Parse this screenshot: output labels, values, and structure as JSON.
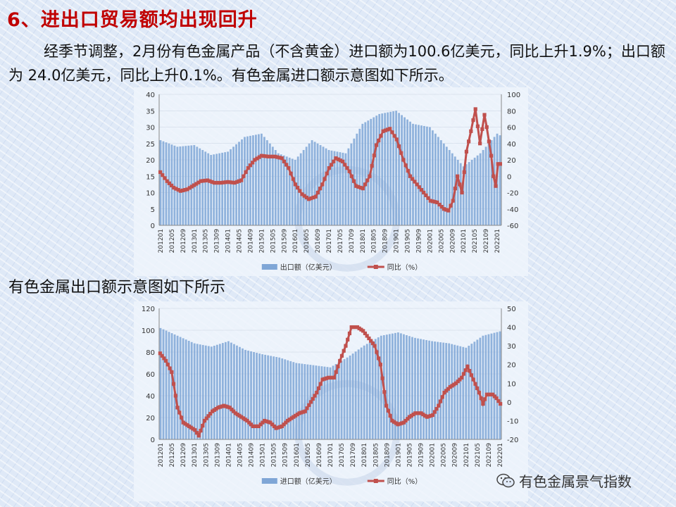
{
  "title": "6、进出口贸易额均出现回升",
  "paragraph": "经季节调整，2月份有色金属产品（不含黄金）进口额为100.6亿美元，同比上升1.9%；出口额为 24.0亿美元，同比上升0.1%。有色金属进口额示意图如下所示。",
  "subtitle": "有色金属出口额示意图如下所示",
  "watermark": "有色金属景气指数",
  "colors": {
    "title": "#c00000",
    "bar": "#7fa6d6",
    "line": "#c0504d"
  },
  "chart_data": [
    {
      "type": "bar+line",
      "title": "",
      "x_ticks": [
        "201201",
        "201205",
        "201209",
        "201301",
        "201305",
        "201309",
        "201401",
        "201405",
        "201409",
        "201501",
        "201505",
        "201509",
        "201601",
        "201605",
        "201609",
        "201701",
        "201705",
        "201709",
        "201801",
        "201805",
        "201809",
        "201901",
        "201905",
        "201909",
        "202001",
        "202005",
        "202009",
        "202101",
        "202105",
        "202109",
        "202201"
      ],
      "y_left": {
        "min": 0,
        "max": 40,
        "step": 5
      },
      "y_right": {
        "min": -60,
        "max": 100,
        "step": 20
      },
      "legend": [
        "出口额（亿美元）",
        "同比（%）"
      ],
      "legend_position": "bottom",
      "bar_anchors": [
        [
          0,
          26
        ],
        [
          6,
          24
        ],
        [
          12,
          24.5
        ],
        [
          18,
          21.5
        ],
        [
          24,
          22.5
        ],
        [
          30,
          27
        ],
        [
          36,
          28
        ],
        [
          42,
          22
        ],
        [
          48,
          20
        ],
        [
          54,
          26
        ],
        [
          60,
          23
        ],
        [
          66,
          22
        ],
        [
          72,
          31
        ],
        [
          78,
          34
        ],
        [
          84,
          35
        ],
        [
          90,
          31
        ],
        [
          96,
          30
        ],
        [
          102,
          24
        ],
        [
          108,
          18
        ],
        [
          114,
          22
        ],
        [
          120,
          28
        ],
        [
          126,
          25
        ],
        [
          128,
          24
        ]
      ],
      "line_anchors": [
        [
          0,
          5
        ],
        [
          3,
          -6
        ],
        [
          6,
          -14
        ],
        [
          9,
          -18
        ],
        [
          12,
          -16
        ],
        [
          18,
          -6
        ],
        [
          21,
          -5
        ],
        [
          24,
          -8
        ],
        [
          27,
          -8
        ],
        [
          30,
          -7
        ],
        [
          33,
          -8
        ],
        [
          36,
          -5
        ],
        [
          39,
          10
        ],
        [
          42,
          20
        ],
        [
          45,
          25
        ],
        [
          48,
          24
        ],
        [
          51,
          24
        ],
        [
          54,
          22
        ],
        [
          57,
          10
        ],
        [
          60,
          -10
        ],
        [
          63,
          -22
        ],
        [
          66,
          -28
        ],
        [
          69,
          -25
        ],
        [
          72,
          -10
        ],
        [
          75,
          10
        ],
        [
          78,
          22
        ],
        [
          81,
          18
        ],
        [
          84,
          6
        ],
        [
          87,
          -12
        ],
        [
          90,
          -15
        ],
        [
          93,
          0
        ],
        [
          96,
          38
        ],
        [
          99,
          55
        ],
        [
          102,
          58
        ],
        [
          105,
          45
        ],
        [
          108,
          20
        ],
        [
          111,
          0
        ],
        [
          114,
          -10
        ],
        [
          117,
          -20
        ],
        [
          120,
          -30
        ],
        [
          123,
          -32
        ],
        [
          126,
          -40
        ],
        [
          128,
          -42
        ],
        [
          130,
          -30
        ],
        [
          132,
          0
        ],
        [
          134,
          -20
        ],
        [
          136,
          30
        ],
        [
          138,
          55
        ],
        [
          140,
          82
        ],
        [
          142,
          40
        ],
        [
          144,
          75
        ],
        [
          145,
          60
        ],
        [
          147,
          25
        ],
        [
          148,
          0
        ],
        [
          149,
          -12
        ],
        [
          150,
          15
        ],
        [
          151,
          15
        ]
      ]
    },
    {
      "type": "bar+line",
      "title": "",
      "x_ticks": [
        "201201",
        "201205",
        "201209",
        "201301",
        "201305",
        "201309",
        "201401",
        "201405",
        "201409",
        "201501",
        "201505",
        "201509",
        "201601",
        "201605",
        "201609",
        "201701",
        "201705",
        "201709",
        "201801",
        "201805",
        "201809",
        "201901",
        "201905",
        "201909",
        "202001",
        "202005",
        "202009",
        "202101",
        "202105",
        "202109",
        "202201"
      ],
      "y_left": {
        "min": 0,
        "max": 120,
        "step": 20
      },
      "y_right": {
        "min": -20,
        "max": 50,
        "step": 10
      },
      "legend": [
        "进口额（亿美元）",
        "同比（%）"
      ],
      "legend_position": "bottom",
      "bar_anchors": [
        [
          0,
          102
        ],
        [
          6,
          95
        ],
        [
          12,
          88
        ],
        [
          18,
          85
        ],
        [
          24,
          90
        ],
        [
          30,
          82
        ],
        [
          36,
          78
        ],
        [
          42,
          75
        ],
        [
          48,
          70
        ],
        [
          54,
          68
        ],
        [
          60,
          66
        ],
        [
          66,
          75
        ],
        [
          72,
          86
        ],
        [
          78,
          95
        ],
        [
          84,
          98
        ],
        [
          90,
          93
        ],
        [
          96,
          90
        ],
        [
          102,
          88
        ],
        [
          108,
          84
        ],
        [
          114,
          95
        ],
        [
          120,
          99
        ],
        [
          126,
          94
        ],
        [
          132,
          97
        ],
        [
          138,
          98
        ],
        [
          141,
          98
        ]
      ],
      "line_anchors": [
        [
          0,
          26
        ],
        [
          3,
          22
        ],
        [
          6,
          16
        ],
        [
          9,
          -3
        ],
        [
          12,
          -11
        ],
        [
          15,
          -13
        ],
        [
          18,
          -15
        ],
        [
          20,
          -18
        ],
        [
          23,
          -10
        ],
        [
          27,
          -5
        ],
        [
          30,
          -3
        ],
        [
          33,
          -2
        ],
        [
          36,
          -3
        ],
        [
          39,
          -6
        ],
        [
          42,
          -8
        ],
        [
          45,
          -10
        ],
        [
          48,
          -13
        ],
        [
          51,
          -13
        ],
        [
          54,
          -10
        ],
        [
          57,
          -11
        ],
        [
          60,
          -14
        ],
        [
          63,
          -13
        ],
        [
          66,
          -10
        ],
        [
          69,
          -8
        ],
        [
          72,
          -6
        ],
        [
          75,
          -5
        ],
        [
          78,
          0
        ],
        [
          81,
          5
        ],
        [
          84,
          12
        ],
        [
          87,
          13
        ],
        [
          90,
          13
        ],
        [
          93,
          22
        ],
        [
          96,
          30
        ],
        [
          99,
          40
        ],
        [
          102,
          40
        ],
        [
          105,
          38
        ],
        [
          108,
          34
        ],
        [
          111,
          30
        ],
        [
          114,
          20
        ],
        [
          117,
          -2
        ],
        [
          120,
          -10
        ],
        [
          123,
          -12
        ],
        [
          126,
          -11
        ],
        [
          129,
          -8
        ],
        [
          132,
          -6
        ],
        [
          135,
          -6
        ],
        [
          138,
          -8
        ],
        [
          141,
          -7
        ],
        [
          144,
          -2
        ],
        [
          147,
          5
        ],
        [
          150,
          8
        ],
        [
          153,
          10
        ],
        [
          156,
          13
        ],
        [
          159,
          19
        ],
        [
          162,
          12
        ],
        [
          165,
          5
        ],
        [
          167,
          -1
        ],
        [
          169,
          4
        ],
        [
          172,
          4
        ],
        [
          174,
          2
        ],
        [
          176,
          -1
        ]
      ]
    }
  ]
}
